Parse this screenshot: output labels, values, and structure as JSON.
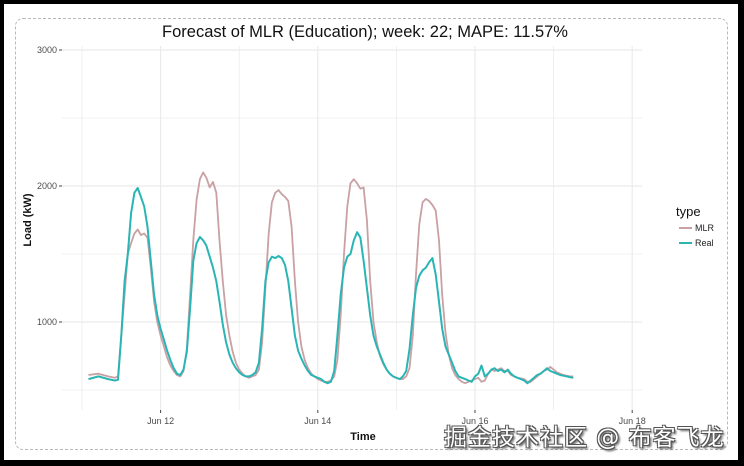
{
  "chart_data": {
    "type": "line",
    "title": "Forecast of MLR (Education); week: 22; MAPE: 11.57%",
    "xlabel": "Time",
    "ylabel": "Load (kW)",
    "x_unit": "hours since Jun 11 00:00",
    "xlim": [
      0,
      170
    ],
    "ylim": [
      500,
      3000
    ],
    "y_ticks": [
      1000,
      2000,
      3000
    ],
    "y_tick_labels": [
      "1000",
      "2000",
      "3000"
    ],
    "x_ticks": [
      24,
      72,
      120,
      168
    ],
    "x_tick_labels": [
      "Jun 12",
      "Jun 14",
      "Jun 16",
      "Jun 18"
    ],
    "grid": true,
    "legend": {
      "title": "type",
      "position": "right",
      "entries": [
        "MLR",
        "Real"
      ]
    },
    "series": [
      {
        "name": "MLR",
        "color": "#c9a0a4",
        "points": [
          [
            2,
            610
          ],
          [
            5,
            620
          ],
          [
            8,
            600
          ],
          [
            10,
            590
          ],
          [
            11,
            600
          ],
          [
            12,
            900
          ],
          [
            13,
            1200
          ],
          [
            14,
            1500
          ],
          [
            15,
            1580
          ],
          [
            16,
            1650
          ],
          [
            17,
            1680
          ],
          [
            18,
            1640
          ],
          [
            19,
            1650
          ],
          [
            20,
            1620
          ],
          [
            21,
            1400
          ],
          [
            22,
            1150
          ],
          [
            23,
            1000
          ],
          [
            24,
            900
          ],
          [
            25,
            820
          ],
          [
            26,
            740
          ],
          [
            27,
            680
          ],
          [
            28,
            640
          ],
          [
            29,
            610
          ],
          [
            30,
            600
          ],
          [
            31,
            640
          ],
          [
            32,
            800
          ],
          [
            33,
            1200
          ],
          [
            34,
            1600
          ],
          [
            35,
            1900
          ],
          [
            36,
            2050
          ],
          [
            37,
            2100
          ],
          [
            38,
            2060
          ],
          [
            39,
            1990
          ],
          [
            40,
            2030
          ],
          [
            41,
            1950
          ],
          [
            42,
            1600
          ],
          [
            43,
            1300
          ],
          [
            44,
            1050
          ],
          [
            45,
            900
          ],
          [
            46,
            780
          ],
          [
            47,
            700
          ],
          [
            48,
            650
          ],
          [
            49,
            620
          ],
          [
            50,
            600
          ],
          [
            51,
            590
          ],
          [
            52,
            600
          ],
          [
            53,
            610
          ],
          [
            54,
            650
          ],
          [
            55,
            850
          ],
          [
            56,
            1250
          ],
          [
            57,
            1650
          ],
          [
            58,
            1880
          ],
          [
            59,
            1950
          ],
          [
            60,
            1970
          ],
          [
            61,
            1940
          ],
          [
            62,
            1920
          ],
          [
            63,
            1890
          ],
          [
            64,
            1700
          ],
          [
            65,
            1300
          ],
          [
            66,
            1000
          ],
          [
            67,
            820
          ],
          [
            68,
            720
          ],
          [
            69,
            660
          ],
          [
            70,
            620
          ],
          [
            71,
            600
          ],
          [
            72,
            580
          ],
          [
            73,
            570
          ],
          [
            74,
            560
          ],
          [
            75,
            560
          ],
          [
            76,
            570
          ],
          [
            77,
            600
          ],
          [
            78,
            720
          ],
          [
            79,
            1050
          ],
          [
            80,
            1500
          ],
          [
            81,
            1850
          ],
          [
            82,
            2020
          ],
          [
            83,
            2050
          ],
          [
            84,
            2020
          ],
          [
            85,
            1980
          ],
          [
            86,
            1990
          ],
          [
            87,
            1750
          ],
          [
            88,
            1300
          ],
          [
            89,
            1000
          ],
          [
            90,
            850
          ],
          [
            91,
            750
          ],
          [
            92,
            690
          ],
          [
            93,
            650
          ],
          [
            94,
            620
          ],
          [
            95,
            600
          ],
          [
            96,
            590
          ],
          [
            97,
            580
          ],
          [
            98,
            580
          ],
          [
            99,
            600
          ],
          [
            100,
            660
          ],
          [
            101,
            900
          ],
          [
            102,
            1350
          ],
          [
            103,
            1720
          ],
          [
            104,
            1880
          ],
          [
            105,
            1905
          ],
          [
            106,
            1890
          ],
          [
            107,
            1860
          ],
          [
            108,
            1820
          ],
          [
            109,
            1600
          ],
          [
            110,
            1200
          ],
          [
            111,
            920
          ],
          [
            112,
            760
          ],
          [
            113,
            660
          ],
          [
            114,
            610
          ],
          [
            115,
            580
          ],
          [
            116,
            560
          ],
          [
            117,
            550
          ],
          [
            118,
            560
          ],
          [
            119,
            570
          ],
          [
            120,
            580
          ],
          [
            121,
            590
          ],
          [
            122,
            560
          ],
          [
            123,
            570
          ],
          [
            124,
            620
          ],
          [
            125,
            650
          ],
          [
            126,
            640
          ],
          [
            127,
            650
          ],
          [
            128,
            660
          ],
          [
            129,
            640
          ],
          [
            130,
            640
          ],
          [
            131,
            610
          ],
          [
            132,
            600
          ],
          [
            133,
            590
          ],
          [
            134,
            585
          ],
          [
            135,
            580
          ],
          [
            136,
            560
          ],
          [
            137,
            560
          ],
          [
            138,
            580
          ],
          [
            139,
            600
          ],
          [
            140,
            620
          ],
          [
            141,
            640
          ],
          [
            142,
            650
          ],
          [
            143,
            670
          ],
          [
            144,
            650
          ],
          [
            145,
            630
          ],
          [
            146,
            620
          ],
          [
            147,
            610
          ],
          [
            148,
            605
          ],
          [
            149,
            600
          ],
          [
            150,
            600
          ]
        ]
      },
      {
        "name": "Real",
        "color": "#2ab5b5",
        "points": [
          [
            2,
            580
          ],
          [
            5,
            600
          ],
          [
            8,
            580
          ],
          [
            10,
            570
          ],
          [
            11,
            575
          ],
          [
            12,
            900
          ],
          [
            13,
            1300
          ],
          [
            14,
            1500
          ],
          [
            15,
            1800
          ],
          [
            16,
            1950
          ],
          [
            17,
            1985
          ],
          [
            18,
            1920
          ],
          [
            19,
            1850
          ],
          [
            20,
            1700
          ],
          [
            21,
            1450
          ],
          [
            22,
            1200
          ],
          [
            23,
            1050
          ],
          [
            24,
            950
          ],
          [
            25,
            870
          ],
          [
            26,
            790
          ],
          [
            27,
            720
          ],
          [
            28,
            660
          ],
          [
            29,
            620
          ],
          [
            30,
            610
          ],
          [
            31,
            650
          ],
          [
            32,
            780
          ],
          [
            33,
            1100
          ],
          [
            34,
            1450
          ],
          [
            35,
            1580
          ],
          [
            36,
            1625
          ],
          [
            37,
            1600
          ],
          [
            38,
            1560
          ],
          [
            39,
            1480
          ],
          [
            40,
            1400
          ],
          [
            41,
            1300
          ],
          [
            42,
            1150
          ],
          [
            43,
            980
          ],
          [
            44,
            850
          ],
          [
            45,
            760
          ],
          [
            46,
            700
          ],
          [
            47,
            660
          ],
          [
            48,
            630
          ],
          [
            49,
            610
          ],
          [
            50,
            600
          ],
          [
            51,
            600
          ],
          [
            52,
            610
          ],
          [
            53,
            630
          ],
          [
            54,
            700
          ],
          [
            55,
            950
          ],
          [
            56,
            1300
          ],
          [
            57,
            1440
          ],
          [
            58,
            1480
          ],
          [
            59,
            1470
          ],
          [
            60,
            1485
          ],
          [
            61,
            1470
          ],
          [
            62,
            1420
          ],
          [
            63,
            1300
          ],
          [
            64,
            1100
          ],
          [
            65,
            900
          ],
          [
            66,
            790
          ],
          [
            67,
            730
          ],
          [
            68,
            680
          ],
          [
            69,
            640
          ],
          [
            70,
            610
          ],
          [
            71,
            600
          ],
          [
            72,
            590
          ],
          [
            73,
            580
          ],
          [
            74,
            560
          ],
          [
            75,
            550
          ],
          [
            76,
            560
          ],
          [
            77,
            640
          ],
          [
            78,
            900
          ],
          [
            79,
            1200
          ],
          [
            80,
            1400
          ],
          [
            81,
            1480
          ],
          [
            82,
            1500
          ],
          [
            83,
            1600
          ],
          [
            84,
            1660
          ],
          [
            85,
            1620
          ],
          [
            86,
            1450
          ],
          [
            87,
            1250
          ],
          [
            88,
            1050
          ],
          [
            89,
            900
          ],
          [
            90,
            820
          ],
          [
            91,
            760
          ],
          [
            92,
            700
          ],
          [
            93,
            650
          ],
          [
            94,
            620
          ],
          [
            95,
            600
          ],
          [
            96,
            590
          ],
          [
            97,
            580
          ],
          [
            98,
            600
          ],
          [
            99,
            640
          ],
          [
            100,
            800
          ],
          [
            101,
            1050
          ],
          [
            102,
            1250
          ],
          [
            103,
            1340
          ],
          [
            104,
            1380
          ],
          [
            105,
            1400
          ],
          [
            106,
            1440
          ],
          [
            107,
            1470
          ],
          [
            108,
            1350
          ],
          [
            109,
            1150
          ],
          [
            110,
            950
          ],
          [
            111,
            820
          ],
          [
            112,
            760
          ],
          [
            113,
            700
          ],
          [
            114,
            640
          ],
          [
            115,
            600
          ],
          [
            116,
            590
          ],
          [
            117,
            580
          ],
          [
            118,
            570
          ],
          [
            119,
            560
          ],
          [
            120,
            600
          ],
          [
            121,
            620
          ],
          [
            122,
            680
          ],
          [
            123,
            600
          ],
          [
            124,
            620
          ],
          [
            125,
            650
          ],
          [
            126,
            660
          ],
          [
            127,
            640
          ],
          [
            128,
            650
          ],
          [
            129,
            630
          ],
          [
            130,
            650
          ],
          [
            131,
            620
          ],
          [
            132,
            600
          ],
          [
            133,
            590
          ],
          [
            134,
            580
          ],
          [
            135,
            570
          ],
          [
            136,
            550
          ],
          [
            137,
            570
          ],
          [
            138,
            590
          ],
          [
            139,
            610
          ],
          [
            140,
            620
          ],
          [
            141,
            640
          ],
          [
            142,
            660
          ],
          [
            143,
            640
          ],
          [
            144,
            630
          ],
          [
            145,
            620
          ],
          [
            146,
            610
          ],
          [
            147,
            605
          ],
          [
            148,
            600
          ],
          [
            149,
            595
          ],
          [
            150,
            590
          ]
        ]
      }
    ]
  },
  "ui": {
    "title": "Forecast of MLR (Education); week: 22; MAPE: 11.57%",
    "xlabel": "Time",
    "ylabel": "Load (kW)",
    "legend_title": "type",
    "legend_mlr": "MLR",
    "legend_real": "Real",
    "watermark": "掘金技术社区 @ 布客飞龙"
  }
}
